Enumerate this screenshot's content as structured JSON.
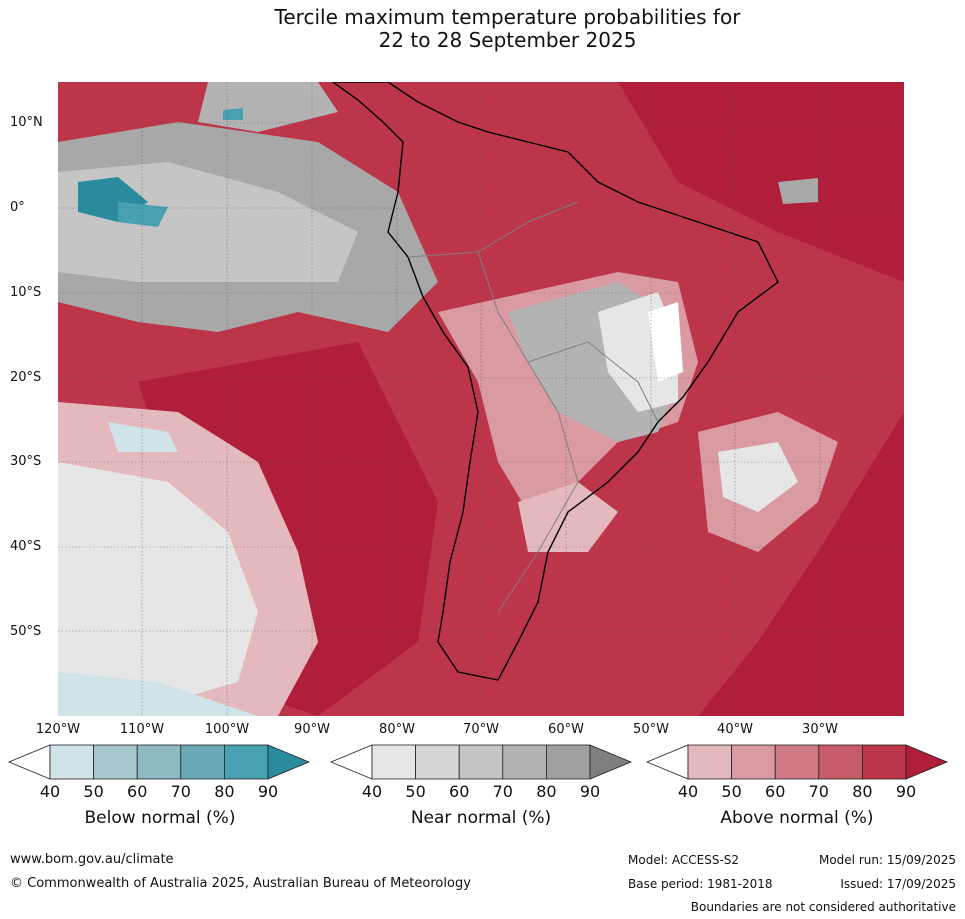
{
  "title": {
    "line1": "Tercile maximum temperature probabilities for",
    "line2": "22 to 28 September 2025"
  },
  "axes": {
    "lat_labels": [
      "10°N",
      "0°",
      "10°S",
      "20°S",
      "30°S",
      "40°S",
      "50°S"
    ],
    "lon_labels": [
      "120°W",
      "110°W",
      "100°W",
      "90°W",
      "80°W",
      "70°W",
      "60°W",
      "50°W",
      "40°W",
      "30°W"
    ]
  },
  "legend": {
    "below": {
      "title": "Below normal (%)",
      "ticks": [
        "40",
        "50",
        "60",
        "70",
        "80",
        "90"
      ],
      "colors": [
        "#cfe3e8",
        "#a8c8cd",
        "#8dbac2",
        "#6aaab7",
        "#48a1b1",
        "#2a8a9e"
      ]
    },
    "near": {
      "title": "Near normal (%)",
      "ticks": [
        "40",
        "50",
        "60",
        "70",
        "80",
        "90"
      ],
      "colors": [
        "#e6e6e6",
        "#d6d6d6",
        "#c5c5c5",
        "#b3b3b3",
        "#a0a0a0",
        "#7f7f7f"
      ]
    },
    "above": {
      "title": "Above normal (%)",
      "ticks": [
        "40",
        "50",
        "60",
        "70",
        "80",
        "90"
      ],
      "colors": [
        "#e3b9be",
        "#d99aa2",
        "#cf7a85",
        "#c65c69",
        "#bc3549",
        "#b01e3a"
      ]
    }
  },
  "footer": {
    "url": "www.bom.gov.au/climate",
    "copyright": "© Commonwealth of Australia 2025, Australian Bureau of Meteorology",
    "model": "Model: ACCESS-S2",
    "base_period": "Base period: 1981-2018",
    "model_run": "Model run: 15/09/2025",
    "issued": "Issued: 17/09/2025",
    "disclaimer": "Boundaries are not considered authoritative"
  }
}
